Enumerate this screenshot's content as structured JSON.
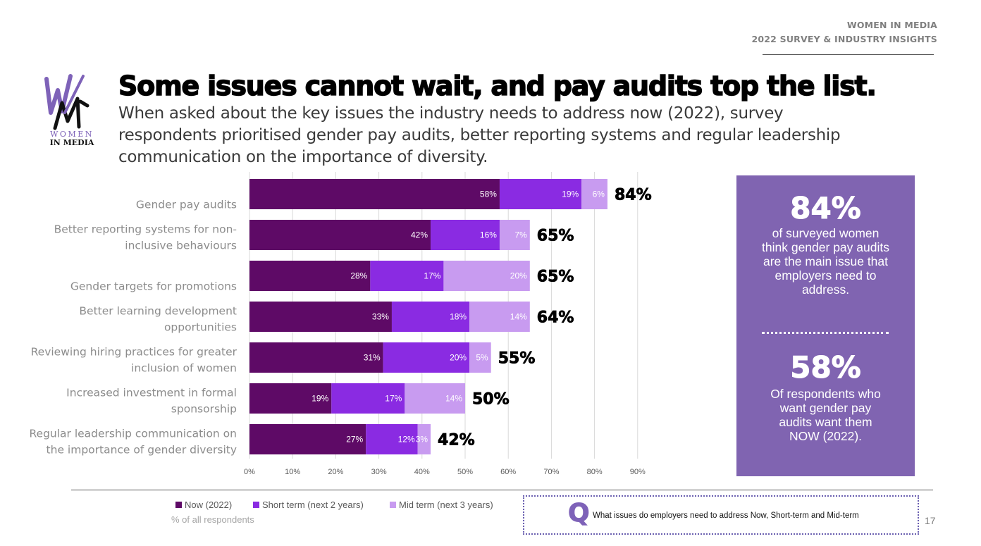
{
  "header": {
    "line1": "WOMEN IN MEDIA",
    "line2": "2022 SURVEY & INDUSTRY INSIGHTS"
  },
  "logo": {
    "line1": "WOMEN",
    "line2": "IN MEDIA"
  },
  "title": "Some issues cannot wait, and pay audits top the list.",
  "subtitle": "When asked about the key issues the industry needs to address now (2022), survey respondents prioritised gender pay audits, better reporting systems and regular leadership communication on the importance of diversity.",
  "colors": {
    "now": "#5e0a66",
    "short": "#8a2be2",
    "mid": "#c89bf0",
    "panel": "#8064b1",
    "accent": "#7e62b8"
  },
  "chart_data": {
    "type": "bar",
    "orientation": "horizontal",
    "stacked": true,
    "categories": [
      [
        "Gender pay audits"
      ],
      [
        "Better reporting systems for non-",
        "inclusive behaviours"
      ],
      [
        "",
        "Gender targets for promotions"
      ],
      [
        "Better learning development",
        "opportunities"
      ],
      [
        "Reviewing hiring practices for greater",
        "inclusion of women"
      ],
      [
        "Increased investment in formal",
        "sponsorship"
      ],
      [
        "Regular leadership communication on",
        "the importance of gender diversity"
      ]
    ],
    "series": [
      {
        "name": "Now (2022)",
        "values": [
          58,
          42,
          28,
          33,
          31,
          19,
          27
        ],
        "labels": [
          "58%",
          "42%",
          "28%",
          "33%",
          "31%",
          "19%",
          "27%"
        ]
      },
      {
        "name": "Short term (next 2 years)",
        "values": [
          19,
          16,
          17,
          18,
          20,
          17,
          12
        ],
        "labels": [
          "19%",
          "16%",
          "17%",
          "18%",
          "20%",
          "17%",
          "12%"
        ]
      },
      {
        "name": "Mid term (next 3 years)",
        "values": [
          6,
          7,
          20,
          14,
          5,
          14,
          3
        ],
        "labels": [
          "6%",
          "7%",
          "20%",
          "14%",
          "5%",
          "14%",
          "3%"
        ]
      }
    ],
    "totals": [
      "84%",
      "65%",
      "65%",
      "64%",
      "55%",
      "50%",
      "42%"
    ],
    "xlim": [
      0,
      90
    ],
    "xticks": [
      "0%",
      "10%",
      "20%",
      "30%",
      "40%",
      "50%",
      "60%",
      "70%",
      "80%",
      "90%"
    ],
    "grid": true,
    "legend": "bottom",
    "note": "% of all respondents"
  },
  "panel": {
    "stat1": "84%",
    "text1": "of surveyed women think gender pay audits are the main issue that employers need to address.",
    "stat2": "58%",
    "text2": "Of respondents who want gender pay audits want them NOW (2022)."
  },
  "question": {
    "mark": "Q",
    "text": "What issues do employers need to address Now, Short-term and Mid-term"
  },
  "page_number": "17"
}
